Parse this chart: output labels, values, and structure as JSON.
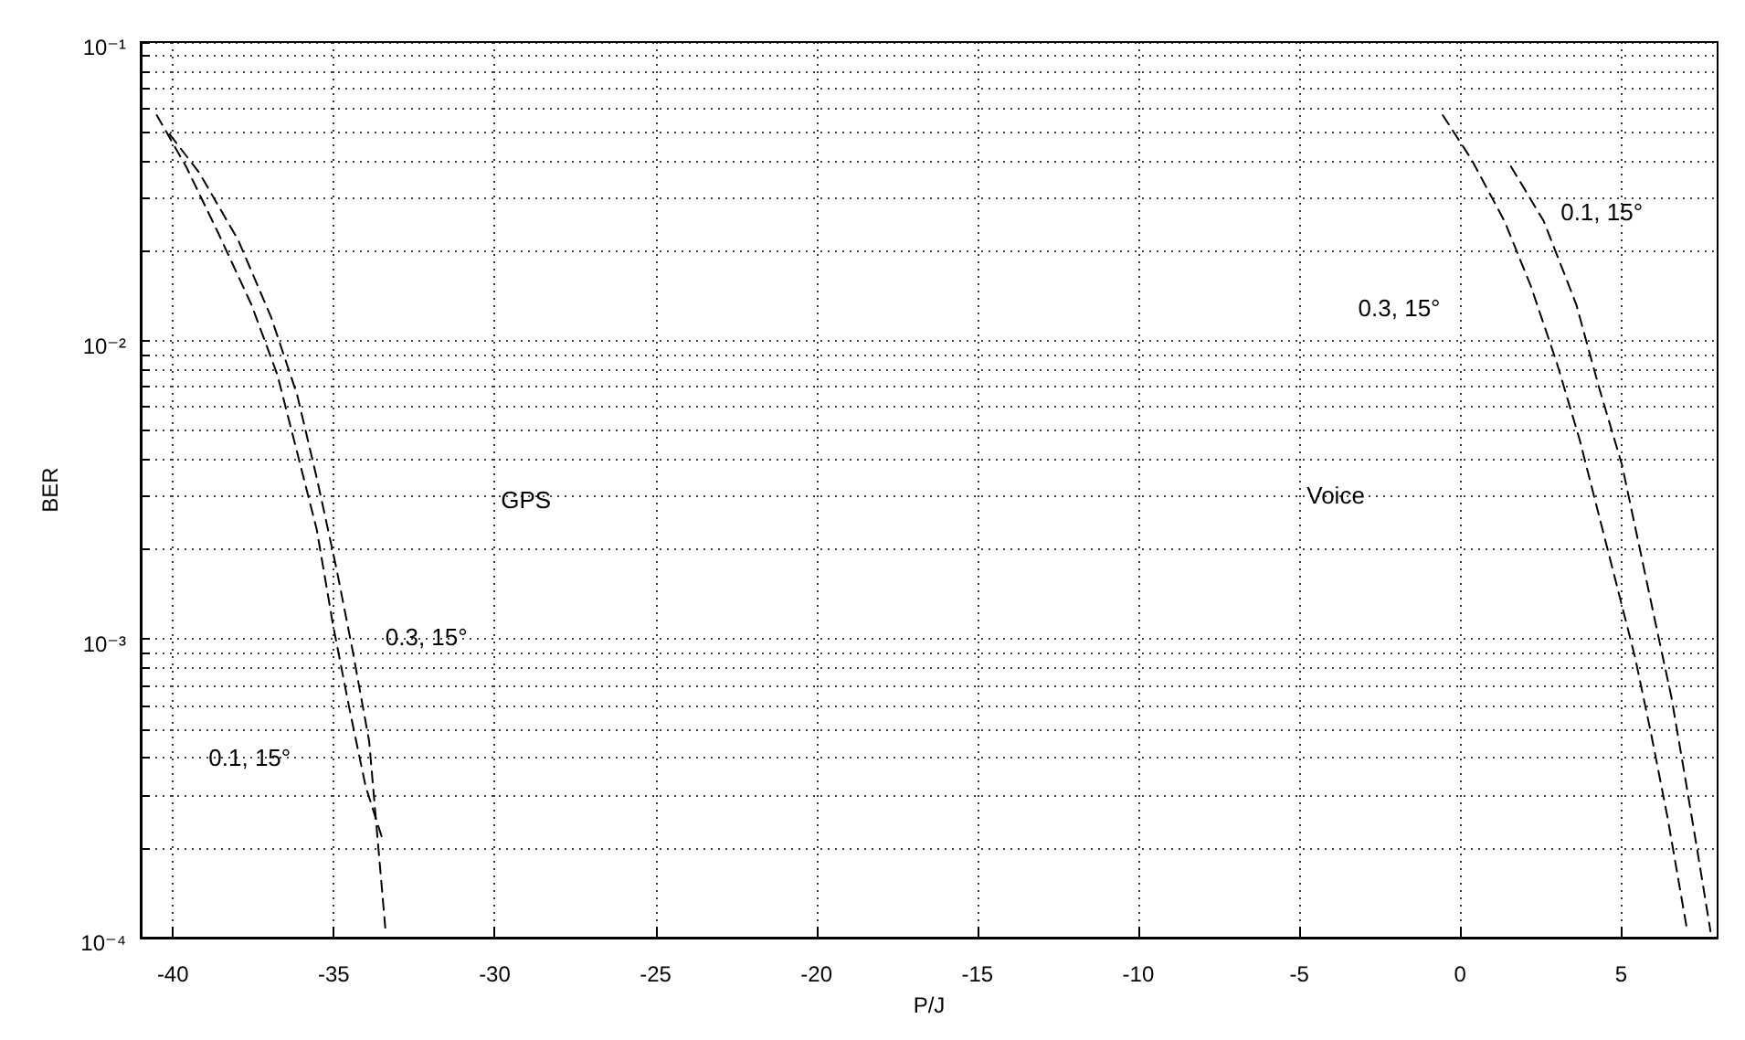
{
  "chart_data": {
    "type": "line",
    "xlabel": "P/J",
    "ylabel": "BER",
    "log": "y",
    "grid": true,
    "line_style": "dashed",
    "marker": "none",
    "xlim": [
      -41,
      8
    ],
    "xticks": [
      -40,
      -35,
      -30,
      -25,
      -20,
      -15,
      -10,
      -5,
      0,
      5
    ],
    "ylim": [
      0.0001,
      0.1
    ],
    "yticks": [
      {
        "value": 0.0001,
        "label": "10⁻⁴"
      },
      {
        "value": 0.0002,
        "label": null
      },
      {
        "value": 0.0003,
        "label": null
      },
      {
        "value": 0.0004,
        "label": null
      },
      {
        "value": 0.0005,
        "label": null
      },
      {
        "value": 0.0006,
        "label": null
      },
      {
        "value": 0.0007,
        "label": null
      },
      {
        "value": 0.0008,
        "label": null
      },
      {
        "value": 0.0009,
        "label": null
      },
      {
        "value": 0.001,
        "label": "10⁻³"
      },
      {
        "value": 0.002,
        "label": null
      },
      {
        "value": 0.003,
        "label": null
      },
      {
        "value": 0.004,
        "label": null
      },
      {
        "value": 0.005,
        "label": null
      },
      {
        "value": 0.006,
        "label": null
      },
      {
        "value": 0.007,
        "label": null
      },
      {
        "value": 0.008,
        "label": null
      },
      {
        "value": 0.009,
        "label": null
      },
      {
        "value": 0.01,
        "label": "10⁻²"
      },
      {
        "value": 0.02,
        "label": null
      },
      {
        "value": 0.03,
        "label": null
      },
      {
        "value": 0.04,
        "label": null
      },
      {
        "value": 0.05,
        "label": null
      },
      {
        "value": 0.06,
        "label": null
      },
      {
        "value": 0.07,
        "label": null
      },
      {
        "value": 0.08,
        "label": null
      },
      {
        "value": 0.09,
        "label": null
      },
      {
        "value": 0.1,
        "label": "10⁻¹"
      }
    ],
    "series": [
      {
        "color": "#000000",
        "x": [
          -40.5,
          -39.59,
          -38.58,
          -37.56,
          -36.75,
          -36.14,
          -35.53,
          -35.02,
          -34.51,
          -34.01,
          -33.5
        ],
        "values": [
          0.0569,
          0.0383,
          0.0228,
          0.0132,
          0.00766,
          0.00423,
          0.00233,
          0.00111,
          0.000582,
          0.000321,
          0.000216
        ]
      },
      {
        "color": "#000000",
        "x": [
          -40.1,
          -39.18,
          -37.97,
          -36.95,
          -36.14,
          -35.53,
          -34.92,
          -34.41,
          -33.9,
          -33.4
        ],
        "values": [
          0.0491,
          0.0365,
          0.0217,
          0.012,
          0.00659,
          0.00347,
          0.00173,
          0.00091,
          0.000454,
          0.000108
        ]
      },
      {
        "color": "#000000",
        "x": [
          -0.54,
          0.36,
          1.38,
          2.19,
          3.0,
          3.71,
          4.32,
          4.83,
          5.44,
          5.94,
          6.45,
          7.06
        ],
        "values": [
          0.0569,
          0.0403,
          0.0251,
          0.0153,
          0.00845,
          0.00467,
          0.00258,
          0.00157,
          0.000865,
          0.000478,
          0.000251,
          0.000105
        ]
      },
      {
        "color": "#000000",
        "x": [
          1.58,
          2.6,
          3.61,
          4.32,
          5.03,
          5.54,
          6.05,
          6.56,
          6.97,
          7.37,
          7.78
        ],
        "values": [
          0.0383,
          0.0251,
          0.0132,
          0.00694,
          0.00383,
          0.00211,
          0.00116,
          0.000643,
          0.000355,
          0.000196,
          0.000105
        ]
      }
    ],
    "annotations": [
      "GPS",
      "0.3, 15°",
      "0.1, 15°",
      "Voice",
      "0.1, 15°",
      "0.3, 15°"
    ]
  }
}
